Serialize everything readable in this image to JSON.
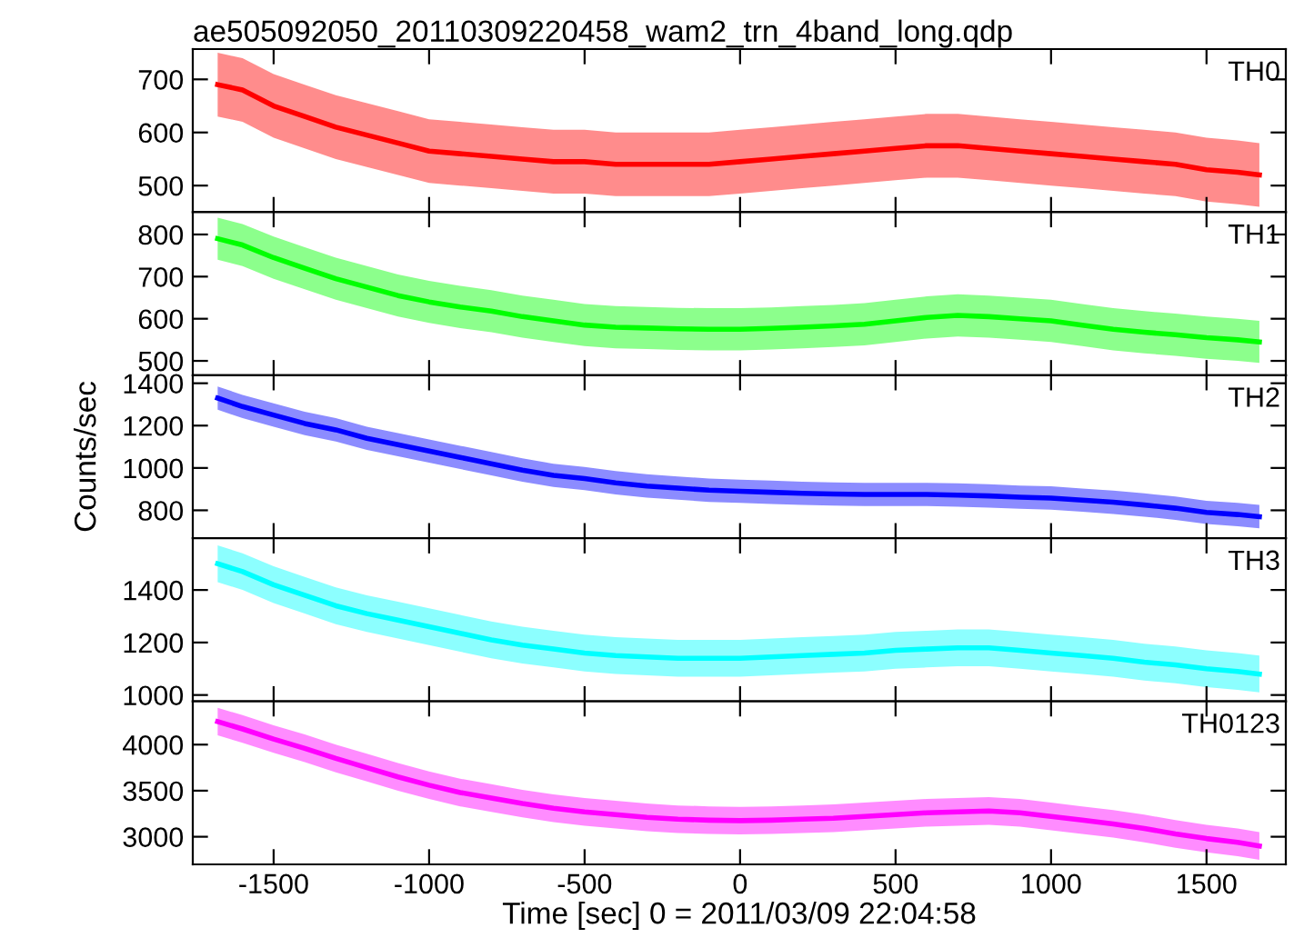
{
  "chart_data": [
    {
      "type": "line",
      "title": "ae505092050_20110309220458_wam2_trn_4band_long.qdp",
      "x": [
        -1680,
        -1600,
        -1500,
        -1400,
        -1300,
        -1200,
        -1100,
        -1000,
        -900,
        -800,
        -700,
        -600,
        -500,
        -400,
        -300,
        -200,
        -100,
        0,
        100,
        200,
        300,
        400,
        500,
        600,
        700,
        800,
        900,
        1000,
        1100,
        1200,
        1300,
        1400,
        1500,
        1600,
        1670
      ],
      "xlim": [
        -1760,
        1755
      ],
      "xticks": [
        -1500,
        -1000,
        -500,
        0,
        500,
        1000,
        1500
      ],
      "ylim": [
        450,
        757
      ],
      "yticks": [
        500,
        600,
        700
      ],
      "tick_labels": "y",
      "grid": false,
      "legend": false,
      "series": [
        {
          "name": "TH0",
          "color": "#ff0000",
          "values": [
            690,
            680,
            650,
            630,
            610,
            595,
            580,
            565,
            560,
            555,
            550,
            545,
            545,
            540,
            540,
            540,
            540,
            545,
            550,
            555,
            560,
            565,
            570,
            575,
            575,
            570,
            565,
            560,
            555,
            550,
            545,
            540,
            530,
            525,
            520
          ],
          "lower": [
            630,
            620,
            590,
            570,
            550,
            535,
            520,
            505,
            500,
            495,
            490,
            485,
            485,
            480,
            480,
            480,
            480,
            485,
            490,
            495,
            500,
            505,
            510,
            515,
            515,
            510,
            505,
            500,
            495,
            490,
            485,
            480,
            470,
            465,
            460
          ],
          "upper": [
            750,
            740,
            710,
            690,
            670,
            655,
            640,
            625,
            620,
            615,
            610,
            605,
            605,
            600,
            600,
            600,
            600,
            605,
            610,
            615,
            620,
            625,
            630,
            635,
            635,
            630,
            625,
            620,
            615,
            610,
            605,
            600,
            590,
            585,
            580
          ]
        }
      ]
    },
    {
      "type": "line",
      "x": [
        -1680,
        -1600,
        -1500,
        -1400,
        -1300,
        -1200,
        -1100,
        -1000,
        -900,
        -800,
        -700,
        -600,
        -500,
        -400,
        -300,
        -200,
        -100,
        0,
        100,
        200,
        300,
        400,
        500,
        600,
        700,
        800,
        900,
        1000,
        1100,
        1200,
        1300,
        1400,
        1500,
        1600,
        1670
      ],
      "xlim": [
        -1760,
        1755
      ],
      "xticks": [
        -1500,
        -1000,
        -500,
        0,
        500,
        1000,
        1500
      ],
      "ylim": [
        466,
        853
      ],
      "yticks": [
        500,
        600,
        700,
        800
      ],
      "tick_labels": "y",
      "grid": false,
      "legend": false,
      "series": [
        {
          "name": "TH1",
          "color": "#00ff00",
          "values": [
            790,
            775,
            745,
            720,
            695,
            675,
            655,
            640,
            628,
            618,
            605,
            595,
            585,
            580,
            578,
            576,
            575,
            575,
            577,
            580,
            583,
            587,
            595,
            603,
            608,
            605,
            600,
            595,
            585,
            575,
            568,
            562,
            555,
            550,
            545
          ],
          "lower": [
            740,
            725,
            695,
            670,
            645,
            625,
            605,
            590,
            578,
            568,
            555,
            545,
            535,
            530,
            528,
            526,
            525,
            525,
            527,
            530,
            533,
            537,
            545,
            553,
            558,
            555,
            550,
            545,
            535,
            525,
            518,
            512,
            505,
            500,
            495
          ],
          "upper": [
            840,
            825,
            795,
            770,
            745,
            725,
            705,
            690,
            678,
            668,
            655,
            645,
            635,
            630,
            628,
            626,
            625,
            625,
            627,
            630,
            633,
            637,
            645,
            653,
            658,
            655,
            650,
            645,
            635,
            625,
            618,
            612,
            605,
            600,
            595
          ]
        }
      ]
    },
    {
      "type": "line",
      "ylabel": "Counts/sec",
      "x": [
        -1680,
        -1600,
        -1500,
        -1400,
        -1300,
        -1200,
        -1100,
        -1000,
        -900,
        -800,
        -700,
        -600,
        -500,
        -400,
        -300,
        -200,
        -100,
        0,
        100,
        200,
        300,
        400,
        500,
        600,
        700,
        800,
        900,
        1000,
        1100,
        1200,
        1300,
        1400,
        1500,
        1600,
        1670
      ],
      "xlim": [
        -1760,
        1755
      ],
      "xticks": [
        -1500,
        -1000,
        -500,
        0,
        500,
        1000,
        1500
      ],
      "ylim": [
        668,
        1438
      ],
      "yticks": [
        800,
        1000,
        1200,
        1400
      ],
      "tick_labels": "y",
      "grid": false,
      "legend": false,
      "series": [
        {
          "name": "TH2",
          "color": "#0000ff",
          "values": [
            1330,
            1290,
            1250,
            1210,
            1180,
            1140,
            1110,
            1080,
            1050,
            1020,
            990,
            965,
            950,
            930,
            915,
            905,
            895,
            890,
            885,
            880,
            877,
            875,
            875,
            875,
            872,
            868,
            862,
            858,
            848,
            838,
            825,
            810,
            790,
            780,
            770
          ],
          "lower": [
            1275,
            1235,
            1195,
            1155,
            1125,
            1085,
            1055,
            1025,
            995,
            965,
            935,
            910,
            895,
            875,
            860,
            850,
            840,
            835,
            830,
            825,
            822,
            820,
            820,
            820,
            817,
            813,
            807,
            803,
            793,
            783,
            770,
            755,
            735,
            725,
            715
          ],
          "upper": [
            1385,
            1345,
            1305,
            1265,
            1235,
            1195,
            1165,
            1135,
            1105,
            1075,
            1045,
            1020,
            1005,
            985,
            970,
            960,
            950,
            945,
            940,
            935,
            932,
            930,
            930,
            930,
            927,
            923,
            917,
            913,
            903,
            893,
            880,
            865,
            845,
            835,
            825
          ]
        }
      ]
    },
    {
      "type": "line",
      "x": [
        -1680,
        -1600,
        -1500,
        -1400,
        -1300,
        -1200,
        -1100,
        -1000,
        -900,
        -800,
        -700,
        -600,
        -500,
        -400,
        -300,
        -200,
        -100,
        0,
        100,
        200,
        300,
        400,
        500,
        600,
        700,
        800,
        900,
        1000,
        1100,
        1200,
        1300,
        1400,
        1500,
        1600,
        1670
      ],
      "xlim": [
        -1760,
        1755
      ],
      "xticks": [
        -1500,
        -1000,
        -500,
        0,
        500,
        1000,
        1500
      ],
      "ylim": [
        976,
        1597
      ],
      "yticks": [
        1000,
        1200,
        1400
      ],
      "tick_labels": "y",
      "grid": false,
      "legend": false,
      "series": [
        {
          "name": "TH3",
          "color": "#00ffff",
          "values": [
            1500,
            1470,
            1420,
            1380,
            1340,
            1310,
            1285,
            1260,
            1235,
            1210,
            1190,
            1175,
            1160,
            1150,
            1145,
            1140,
            1140,
            1140,
            1145,
            1150,
            1155,
            1160,
            1170,
            1175,
            1180,
            1180,
            1170,
            1160,
            1150,
            1140,
            1125,
            1115,
            1100,
            1090,
            1080
          ],
          "lower": [
            1430,
            1400,
            1350,
            1310,
            1270,
            1240,
            1215,
            1190,
            1165,
            1140,
            1120,
            1105,
            1090,
            1080,
            1075,
            1070,
            1070,
            1070,
            1075,
            1080,
            1085,
            1090,
            1100,
            1105,
            1110,
            1110,
            1100,
            1090,
            1080,
            1070,
            1055,
            1045,
            1030,
            1020,
            1010
          ],
          "upper": [
            1570,
            1540,
            1490,
            1450,
            1410,
            1380,
            1355,
            1330,
            1305,
            1280,
            1260,
            1245,
            1230,
            1220,
            1215,
            1210,
            1210,
            1210,
            1215,
            1220,
            1225,
            1230,
            1240,
            1245,
            1250,
            1250,
            1240,
            1230,
            1220,
            1210,
            1195,
            1185,
            1170,
            1160,
            1150
          ]
        }
      ]
    },
    {
      "type": "line",
      "xlabel": "Time [sec] 0 = 2011/03/09 22:04:58",
      "x": [
        -1680,
        -1600,
        -1500,
        -1400,
        -1300,
        -1200,
        -1100,
        -1000,
        -900,
        -800,
        -700,
        -600,
        -500,
        -400,
        -300,
        -200,
        -100,
        0,
        100,
        200,
        300,
        400,
        500,
        600,
        700,
        800,
        900,
        1000,
        1100,
        1200,
        1300,
        1400,
        1500,
        1600,
        1670
      ],
      "xlim": [
        -1760,
        1755
      ],
      "xticks": [
        -1500,
        -1000,
        -500,
        0,
        500,
        1000,
        1500
      ],
      "ylim": [
        2700,
        4470
      ],
      "yticks": [
        3000,
        3500,
        4000
      ],
      "grid": false,
      "legend": false,
      "series": [
        {
          "name": "TH0123",
          "color": "#ff00ff",
          "values": [
            4250,
            4170,
            4060,
            3960,
            3850,
            3750,
            3650,
            3560,
            3480,
            3420,
            3360,
            3310,
            3270,
            3240,
            3210,
            3190,
            3180,
            3175,
            3180,
            3190,
            3200,
            3220,
            3240,
            3260,
            3270,
            3280,
            3260,
            3220,
            3180,
            3140,
            3090,
            3030,
            2980,
            2940,
            2900
          ],
          "lower": [
            4100,
            4020,
            3910,
            3810,
            3700,
            3600,
            3500,
            3410,
            3330,
            3270,
            3210,
            3160,
            3120,
            3090,
            3060,
            3040,
            3030,
            3025,
            3030,
            3040,
            3050,
            3070,
            3090,
            3110,
            3120,
            3130,
            3110,
            3070,
            3030,
            2990,
            2940,
            2880,
            2830,
            2790,
            2750
          ],
          "upper": [
            4400,
            4320,
            4210,
            4110,
            4000,
            3900,
            3800,
            3710,
            3630,
            3570,
            3510,
            3460,
            3420,
            3390,
            3360,
            3340,
            3330,
            3325,
            3330,
            3340,
            3350,
            3370,
            3390,
            3410,
            3420,
            3430,
            3410,
            3370,
            3330,
            3290,
            3240,
            3180,
            3130,
            3090,
            3050
          ]
        }
      ]
    }
  ]
}
